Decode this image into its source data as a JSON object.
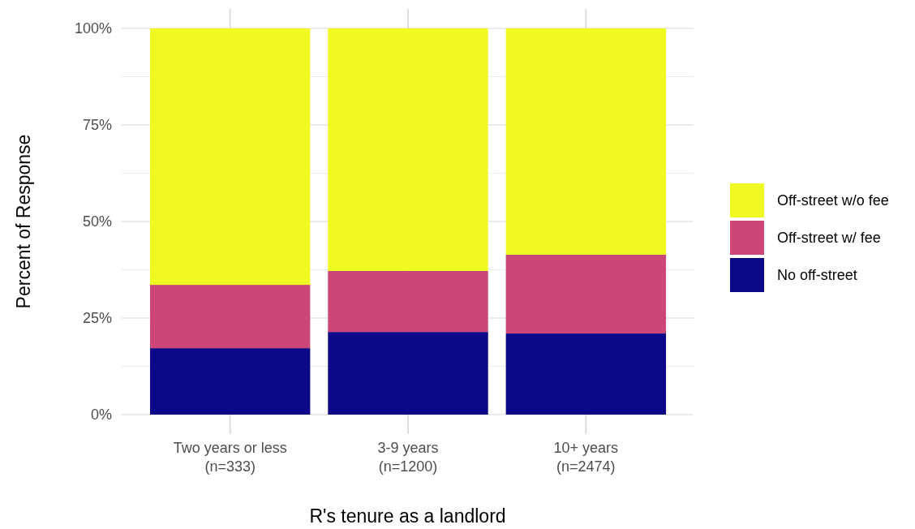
{
  "chart_data": {
    "type": "bar",
    "stacked": true,
    "xlabel": "R's tenure as a landlord",
    "ylabel": "Percent of Response",
    "categories": [
      "Two years or less\n(n=333)",
      "3-9 years\n(n=1200)",
      "10+ years\n(n=2474)"
    ],
    "series": [
      {
        "name": "No off-street",
        "color": "#0d0887",
        "values": [
          17.2,
          21.4,
          21.0
        ]
      },
      {
        "name": "Off-street w/ fee",
        "color": "#cc4778",
        "values": [
          16.4,
          15.8,
          20.4
        ]
      },
      {
        "name": "Off-street w/o fee",
        "color": "#f0f921",
        "values": [
          66.4,
          62.8,
          58.6
        ]
      }
    ],
    "ylim": [
      -5,
      105
    ],
    "yticks": [
      {
        "value": 0,
        "label": "0%"
      },
      {
        "value": 12.5,
        "label": null
      },
      {
        "value": 25,
        "label": "25%"
      },
      {
        "value": 37.5,
        "label": null
      },
      {
        "value": 50,
        "label": "50%"
      },
      {
        "value": 62.5,
        "label": null
      },
      {
        "value": 75,
        "label": "75%"
      },
      {
        "value": 87.5,
        "label": null
      },
      {
        "value": 100,
        "label": "100%"
      }
    ],
    "grid": true,
    "legend": "right"
  }
}
